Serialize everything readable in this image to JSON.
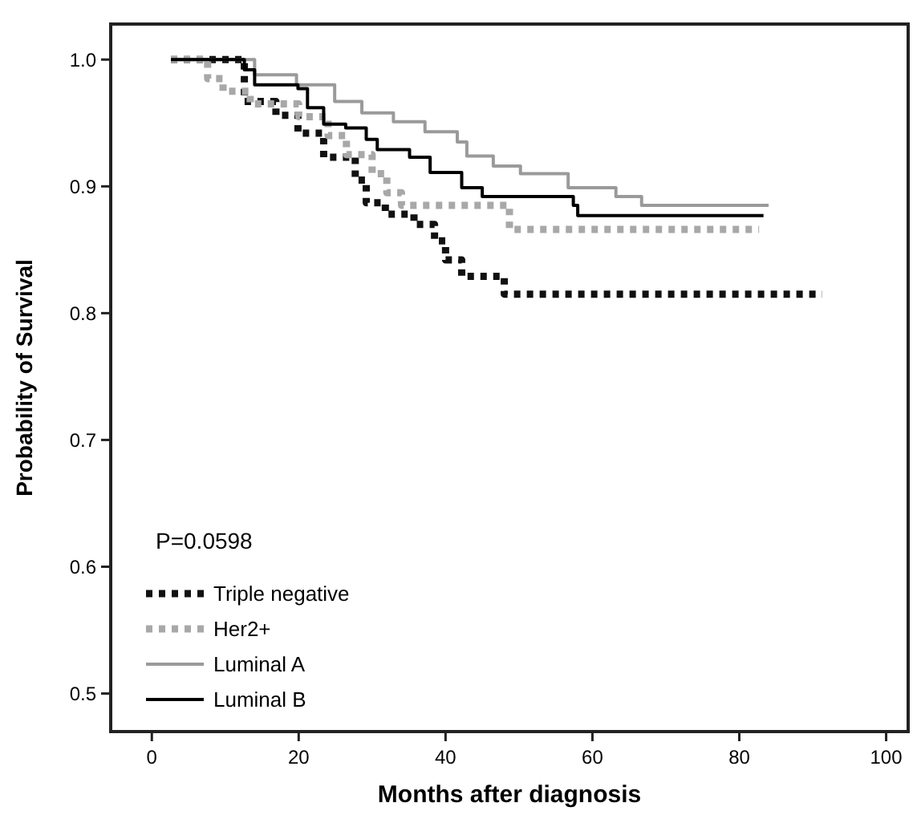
{
  "chart_data": {
    "type": "step",
    "xlabel": "Months after diagnosis",
    "ylabel": "Probability of Survival",
    "xlim": [
      -5.6,
      103
    ],
    "ylim": [
      0.47,
      1.028
    ],
    "xticks": [
      0,
      20,
      40,
      60,
      80,
      100
    ],
    "yticks": [
      {
        "value": 0.5,
        "label": "0.5"
      },
      {
        "value": 0.6,
        "label": "0.6"
      },
      {
        "value": 0.7,
        "label": "0.7"
      },
      {
        "value": 0.8,
        "label": "0.8"
      },
      {
        "value": 0.9,
        "label": "0.9"
      },
      {
        "value": 1.0,
        "label": "1.0"
      }
    ],
    "grid": false,
    "legend": "bottom left",
    "annotations": [
      "P=0.0598"
    ],
    "series": [
      {
        "name": "Triple negative",
        "color": "#111111",
        "line_style": "dotted",
        "x": [
          2.6,
          12.6,
          16.9,
          19.9,
          23.4,
          27.7,
          29.2,
          31.8,
          35.7,
          38.5,
          40,
          42.2,
          48,
          52.4,
          91.3
        ],
        "values": [
          1.0,
          0.967,
          0.956,
          0.942,
          0.923,
          0.905,
          0.887,
          0.878,
          0.87,
          0.857,
          0.842,
          0.829,
          0.815,
          0.815,
          0.815
        ]
      },
      {
        "name": "Her2+",
        "color": "#a8a8a8",
        "line_style": "dotted",
        "x": [
          2.6,
          7.6,
          9.7,
          13.4,
          20,
          24,
          26.5,
          30,
          32,
          34,
          48.7,
          82.7
        ],
        "values": [
          1.0,
          0.985,
          0.975,
          0.965,
          0.955,
          0.94,
          0.925,
          0.91,
          0.895,
          0.885,
          0.866,
          0.866
        ]
      },
      {
        "name": "Luminal A",
        "color": "#9a9a9a",
        "line_style": "solid",
        "x": [
          2.6,
          14,
          19.7,
          24.9,
          28.6,
          32.9,
          37.2,
          41.6,
          42.9,
          46.5,
          50.2,
          56.7,
          63.2,
          66.7,
          84
        ],
        "values": [
          1.0,
          0.988,
          0.98,
          0.967,
          0.958,
          0.951,
          0.943,
          0.935,
          0.924,
          0.916,
          0.91,
          0.899,
          0.892,
          0.885,
          0.885
        ]
      },
      {
        "name": "Luminal B",
        "color": "#000000",
        "line_style": "solid",
        "x": [
          2.6,
          12.6,
          14,
          19.9,
          21.2,
          23.4,
          26.4,
          29.2,
          30.7,
          35.1,
          37.9,
          42.2,
          45,
          57.4,
          58,
          83.3
        ],
        "values": [
          1.0,
          0.992,
          0.98,
          0.977,
          0.962,
          0.949,
          0.946,
          0.937,
          0.929,
          0.923,
          0.911,
          0.899,
          0.892,
          0.885,
          0.877,
          0.877
        ]
      }
    ]
  }
}
